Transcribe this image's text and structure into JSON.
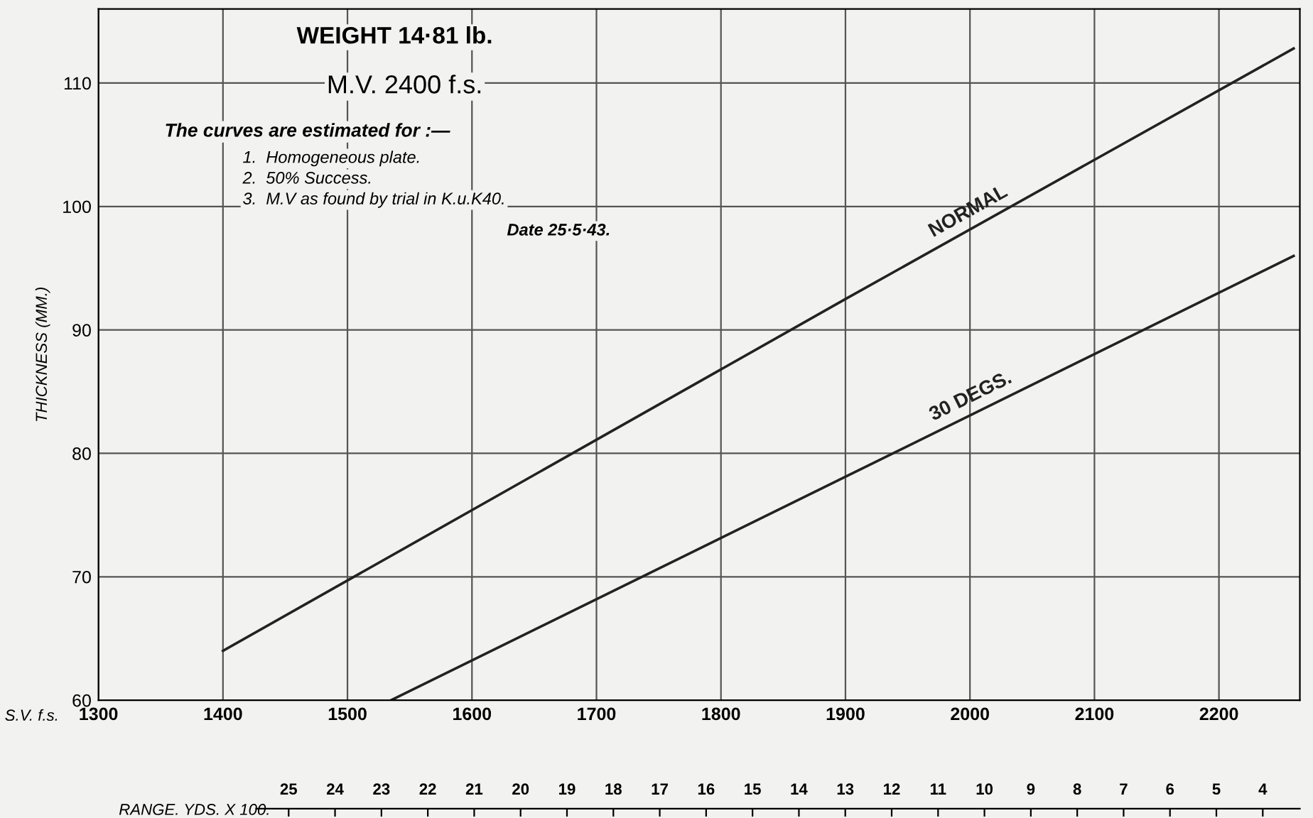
{
  "chart_data": {
    "type": "line",
    "title": "WEIGHT 14·81 lb.",
    "subtitle": "M.V. 2400 f.s.",
    "xlabel": "S.V. f.s.",
    "ylabel": "THICKNESS (MM.)",
    "x2label": "RANGE. YDS. X 100.",
    "annotations": [
      "The curves are estimated for :—",
      "1.  Homogeneous plate.",
      "2.  50% Success.",
      "3.  M.V as found by trial in K.u.K40.",
      "Date 25·5·43."
    ],
    "xlim": [
      1300,
      2265
    ],
    "xticks": [
      1300,
      1400,
      1500,
      1600,
      1700,
      1800,
      1900,
      2000,
      2100,
      2200
    ],
    "ylim": [
      60,
      116
    ],
    "yticks": [
      60,
      70,
      80,
      90,
      100,
      110
    ],
    "x2lim": [
      29.1,
      3.2
    ],
    "x2ticks": [
      25,
      24,
      23,
      22,
      21,
      20,
      19,
      18,
      17,
      16,
      15,
      14,
      13,
      12,
      11,
      10,
      9,
      8,
      7,
      6,
      5,
      4
    ],
    "grid": true,
    "legend": false,
    "marker": "none",
    "line_style": "solid",
    "series": [
      {
        "name": "NORMAL",
        "color": "#222222",
        "x": [
          1400,
          1900,
          2260
        ],
        "values": [
          64,
          92.5,
          112.8
        ]
      },
      {
        "name": "30 DEGS.",
        "color": "#222222",
        "x": [
          1535,
          1900,
          2260
        ],
        "values": [
          60,
          78.1,
          96
        ]
      }
    ]
  }
}
